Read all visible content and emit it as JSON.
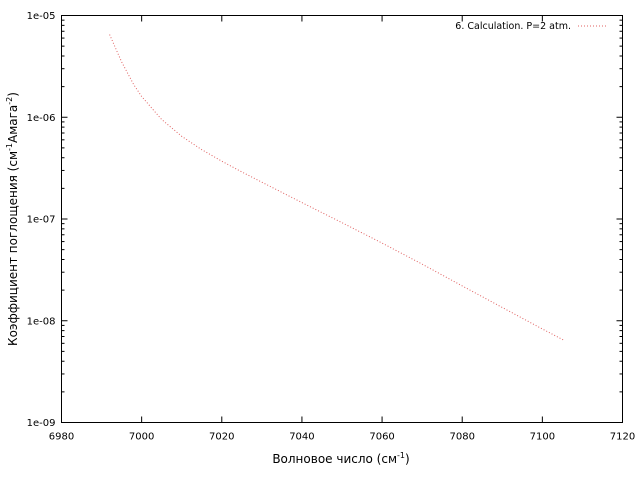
{
  "chart_data": {
    "type": "line",
    "title": "",
    "xlabel": {
      "base": "Волновое число (см",
      "sup": "-1",
      "tail": ")"
    },
    "ylabel": {
      "base": "Коэффициент поглощения (см",
      "sup1": "-1",
      "mid": "Амага",
      "sup2": "-2",
      "tail": ")"
    },
    "xlim": [
      6980,
      7120
    ],
    "ylim": [
      1e-09,
      1e-05
    ],
    "yscale": "log",
    "xticks": [
      6980,
      7000,
      7020,
      7040,
      7060,
      7080,
      7100,
      7120
    ],
    "xtick_labels": [
      "6980",
      "7000",
      "7020",
      "7040",
      "7060",
      "7080",
      "7100",
      "7120"
    ],
    "yticks": [
      1e-09,
      1e-08,
      1e-07,
      1e-06,
      1e-05
    ],
    "ytick_labels": [
      "1e-09",
      "1e-08",
      "1e-07",
      "1e-06",
      "1e-05"
    ],
    "grid": false,
    "legend": {
      "position": "top-right"
    },
    "series": [
      {
        "name": "6. Calculation. P=2 atm.",
        "color": "#e06060",
        "style": "dotted",
        "x": [
          6992,
          6995,
          6998,
          7000,
          7005,
          7010,
          7015,
          7020,
          7025,
          7030,
          7040,
          7050,
          7060,
          7070,
          7080,
          7090,
          7100,
          7105.5
        ],
        "y": [
          6.5e-06,
          3.5e-06,
          2.1e-06,
          1.6e-06,
          9.5e-07,
          6.5e-07,
          4.8e-07,
          3.7e-07,
          2.9e-07,
          2.3e-07,
          1.45e-07,
          9.2e-08,
          5.8e-08,
          3.6e-08,
          2.2e-08,
          1.35e-08,
          8.3e-09,
          6.4e-09
        ]
      }
    ]
  }
}
